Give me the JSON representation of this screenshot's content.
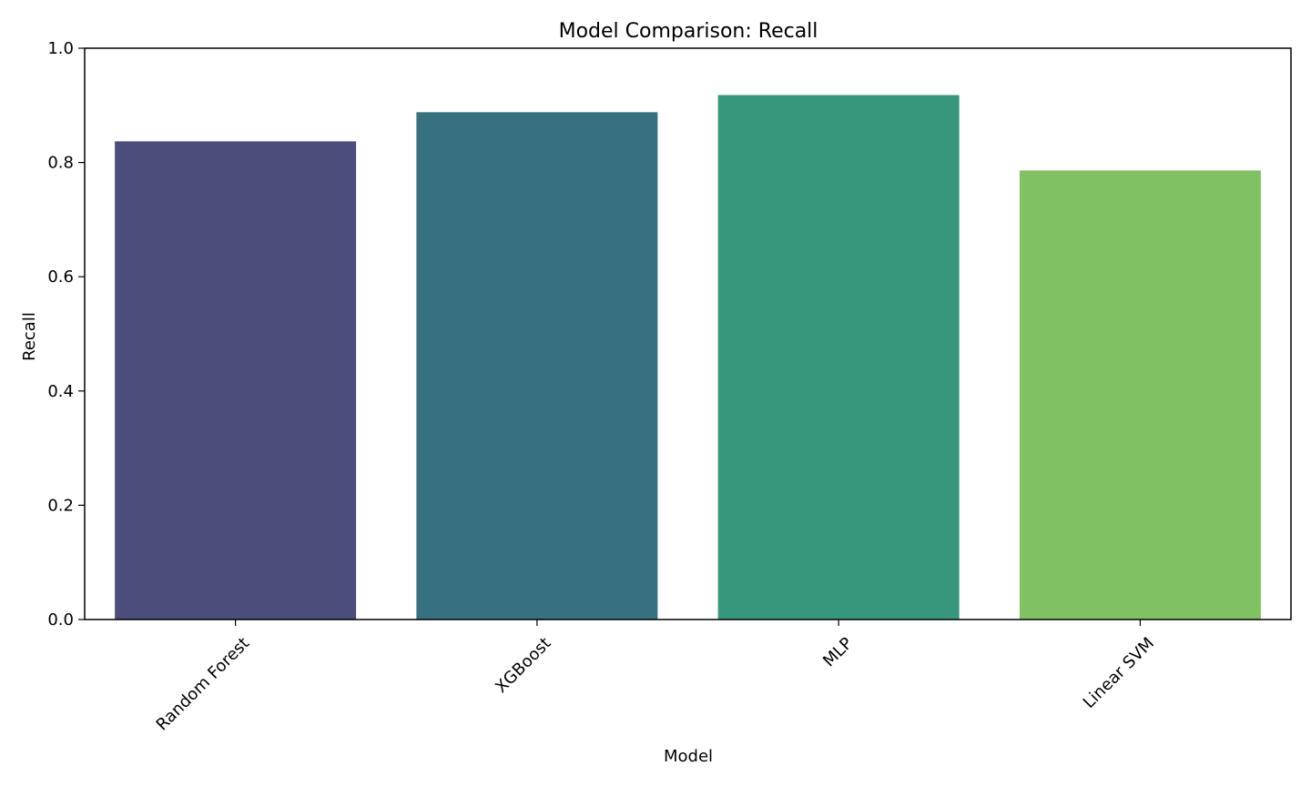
{
  "chart_data": {
    "type": "bar",
    "title": "Model Comparison: Recall",
    "xlabel": "Model",
    "ylabel": "Recall",
    "categories": [
      "Random Forest",
      "XGBoost",
      "MLP",
      "Linear SVM"
    ],
    "values": [
      0.837,
      0.888,
      0.918,
      0.786
    ],
    "colors": [
      "#4b4d7b",
      "#37717f",
      "#36977c",
      "#80c163"
    ],
    "ylim": [
      0.0,
      1.0
    ],
    "yticks": [
      0.0,
      0.2,
      0.4,
      0.6,
      0.8,
      1.0
    ],
    "ytick_labels": [
      "0.0",
      "0.2",
      "0.4",
      "0.6",
      "0.8",
      "1.0"
    ],
    "grid": false,
    "xtick_rotation_deg": 45
  }
}
